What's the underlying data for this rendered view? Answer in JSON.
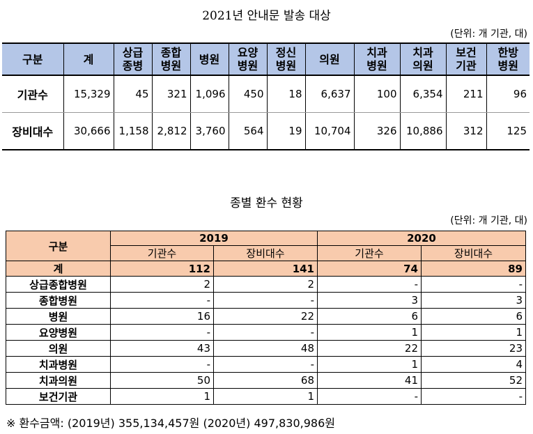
{
  "table1": {
    "title": "2021년 안내문 발송 대상",
    "unit": "(단위: 개 기관, 대)",
    "headers": [
      [
        "구분"
      ],
      [
        "계"
      ],
      [
        "상급",
        "종병"
      ],
      [
        "종합",
        "병원"
      ],
      [
        "병원"
      ],
      [
        "요양",
        "병원"
      ],
      [
        "정신",
        "병원"
      ],
      [
        "의원"
      ],
      [
        "치과",
        "병원"
      ],
      [
        "치과",
        "의원"
      ],
      [
        "보건",
        "기관"
      ],
      [
        "한방",
        "병원"
      ]
    ],
    "rows": [
      {
        "label": "기관수",
        "values": [
          "15,329",
          "45",
          "321",
          "1,096",
          "450",
          "18",
          "6,637",
          "100",
          "6,354",
          "211",
          "96"
        ]
      },
      {
        "label": "장비대수",
        "values": [
          "30,666",
          "1,158",
          "2,812",
          "3,760",
          "564",
          "19",
          "10,704",
          "326",
          "10,886",
          "312",
          "125"
        ]
      }
    ]
  },
  "table2": {
    "title": "종별 환수 현황",
    "unit": "(단위: 개 기관, 대)",
    "header_label": "구분",
    "years": [
      "2019",
      "2020"
    ],
    "subheaders": [
      "기관수",
      "장비대수",
      "기관수",
      "장비대수"
    ],
    "total": {
      "label": "계",
      "values": [
        "112",
        "141",
        "74",
        "89"
      ]
    },
    "rows": [
      {
        "label": "상급종합병원",
        "values": [
          "2",
          "2",
          "-",
          "-"
        ]
      },
      {
        "label": "종합병원",
        "values": [
          "-",
          "-",
          "3",
          "3"
        ]
      },
      {
        "label": "병원",
        "values": [
          "16",
          "22",
          "6",
          "6"
        ]
      },
      {
        "label": "요양병원",
        "values": [
          "-",
          "-",
          "1",
          "1"
        ]
      },
      {
        "label": "의원",
        "values": [
          "43",
          "48",
          "22",
          "23"
        ]
      },
      {
        "label": "치과병원",
        "values": [
          "-",
          "-",
          "1",
          "4"
        ]
      },
      {
        "label": "치과의원",
        "values": [
          "50",
          "68",
          "41",
          "52"
        ]
      },
      {
        "label": "보건기관",
        "values": [
          "1",
          "1",
          "-",
          "-"
        ]
      }
    ]
  },
  "note": "※ 환수금액: (2019년) 355,134,457원 (2020년) 497,830,986원"
}
